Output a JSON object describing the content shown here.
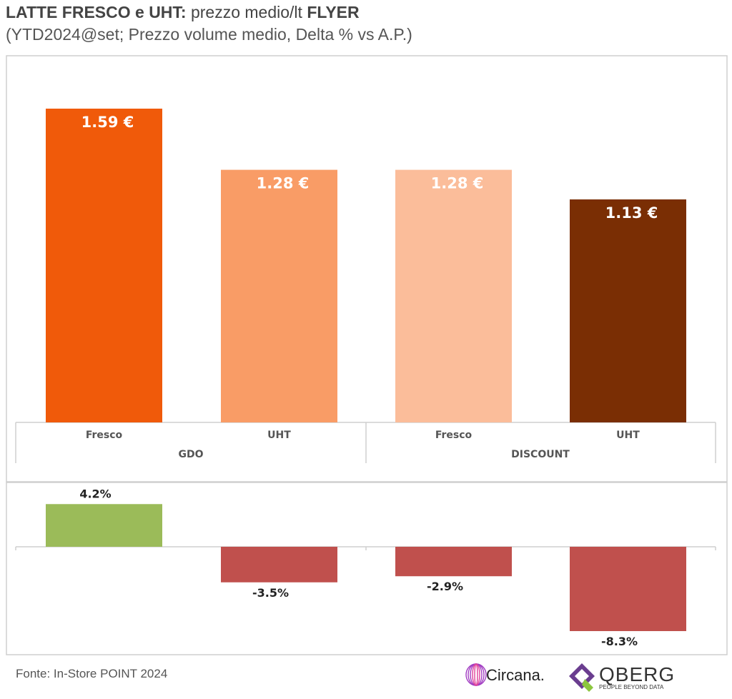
{
  "header": {
    "title_bold": "LATTE FRESCO e UHT:",
    "title_light": "prezzo medio/lt",
    "title_bold2": "FLYER",
    "subtitle": "(YTD2024@set; Prezzo volume medio, Delta % vs A.P.)"
  },
  "footer": {
    "source": "Fonte: In-Store POINT 2024",
    "logo_circana": "Circana.",
    "logo_qberg": "QBERG",
    "logo_qberg_tag": "PEOPLE BEYOND DATA"
  },
  "colors": {
    "gdo_fresco": "#f05a0a",
    "gdo_uht": "#f99c66",
    "discount_fresco": "#fbbd9a",
    "discount_uht": "#7a2e04",
    "delta_positive": "#9bbb59",
    "delta_negative": "#c0504d"
  },
  "chart_data": [
    {
      "type": "bar",
      "title": "",
      "groups": [
        "GDO",
        "GDO",
        "DISCOUNT",
        "DISCOUNT"
      ],
      "group_labels": [
        "GDO",
        "DISCOUNT"
      ],
      "categories": [
        "Fresco",
        "UHT",
        "Fresco",
        "UHT"
      ],
      "values": [
        1.59,
        1.28,
        1.28,
        1.13
      ],
      "value_labels": [
        "1.59 €",
        "1.28 €",
        "1.28 €",
        "1.13 €"
      ],
      "ylim": [
        0,
        1.85
      ],
      "grid": false
    },
    {
      "type": "bar",
      "title": "",
      "categories": [
        "Fresco",
        "UHT",
        "Fresco",
        "UHT"
      ],
      "values": [
        4.2,
        -3.5,
        -2.9,
        -8.3
      ],
      "value_labels": [
        "4.2%",
        "-3.5%",
        "-2.9%",
        "-8.3%"
      ],
      "ylim": [
        -9.0,
        5.0
      ],
      "grid": false
    }
  ]
}
